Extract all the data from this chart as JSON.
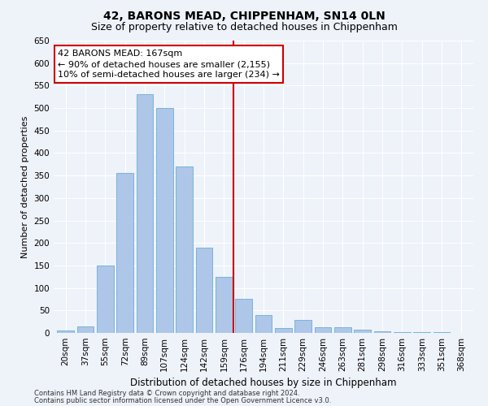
{
  "title1": "42, BARONS MEAD, CHIPPENHAM, SN14 0LN",
  "title2": "Size of property relative to detached houses in Chippenham",
  "xlabel": "Distribution of detached houses by size in Chippenham",
  "ylabel": "Number of detached properties",
  "categories": [
    "20sqm",
    "37sqm",
    "55sqm",
    "72sqm",
    "89sqm",
    "107sqm",
    "124sqm",
    "142sqm",
    "159sqm",
    "176sqm",
    "194sqm",
    "211sqm",
    "229sqm",
    "246sqm",
    "263sqm",
    "281sqm",
    "298sqm",
    "316sqm",
    "333sqm",
    "351sqm",
    "368sqm"
  ],
  "values": [
    5,
    15,
    150,
    355,
    530,
    500,
    370,
    190,
    125,
    75,
    40,
    10,
    28,
    12,
    12,
    8,
    3,
    2,
    1,
    1,
    0
  ],
  "bar_color": "#aec6e8",
  "bar_edge_color": "#6aaed6",
  "vline_x": 8.5,
  "vline_color": "#cc0000",
  "annotation_line1": "42 BARONS MEAD: 167sqm",
  "annotation_line2": "← 90% of detached houses are smaller (2,155)",
  "annotation_line3": "10% of semi-detached houses are larger (234) →",
  "annotation_box_color": "#ffffff",
  "annotation_box_edge_color": "#cc0000",
  "ylim": [
    0,
    650
  ],
  "yticks": [
    0,
    50,
    100,
    150,
    200,
    250,
    300,
    350,
    400,
    450,
    500,
    550,
    600,
    650
  ],
  "bg_color": "#eef2f9",
  "grid_color": "#ffffff",
  "footer1": "Contains HM Land Registry data © Crown copyright and database right 2024.",
  "footer2": "Contains public sector information licensed under the Open Government Licence v3.0.",
  "title1_fontsize": 10,
  "title2_fontsize": 9,
  "xlabel_fontsize": 8.5,
  "ylabel_fontsize": 8,
  "tick_fontsize": 7.5,
  "annotation_fontsize": 8,
  "footer_fontsize": 6
}
